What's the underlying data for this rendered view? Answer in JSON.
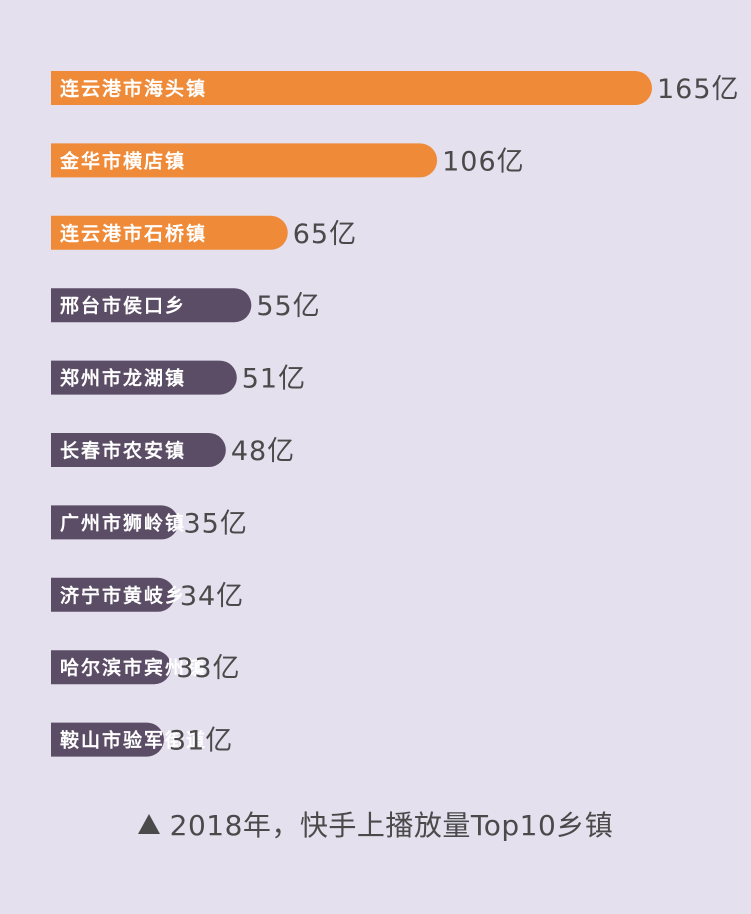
{
  "chart_data": {
    "type": "bar",
    "orientation": "horizontal",
    "categories": [
      "连云港市海头镇",
      "金华市横店镇",
      "连云港市石桥镇",
      "邢台市侯口乡",
      "郑州市龙湖镇",
      "长春市农安镇",
      "广州市狮岭镇",
      "济宁市黄岐乡",
      "哈尔滨市宾州镇",
      "鞍山市验军街道"
    ],
    "values": [
      165,
      106,
      65,
      55,
      51,
      48,
      35,
      34,
      33,
      31
    ],
    "value_labels": [
      "165亿",
      "106亿",
      "65亿",
      "55亿",
      "51亿",
      "48亿",
      "35亿",
      "34亿",
      "33亿",
      "31亿"
    ],
    "highlight_top": 3,
    "caption": "2018年，快手上播放量Top10乡镇",
    "grid": false,
    "legend": "none"
  },
  "colors": {
    "background": "#e4e0ee",
    "highlight": "#ef8a38",
    "normal": "#5b4d66",
    "value_text": "#4a4a4a",
    "bar_label_text": "#ffffff"
  },
  "caption_icon": "triangle-up-icon"
}
